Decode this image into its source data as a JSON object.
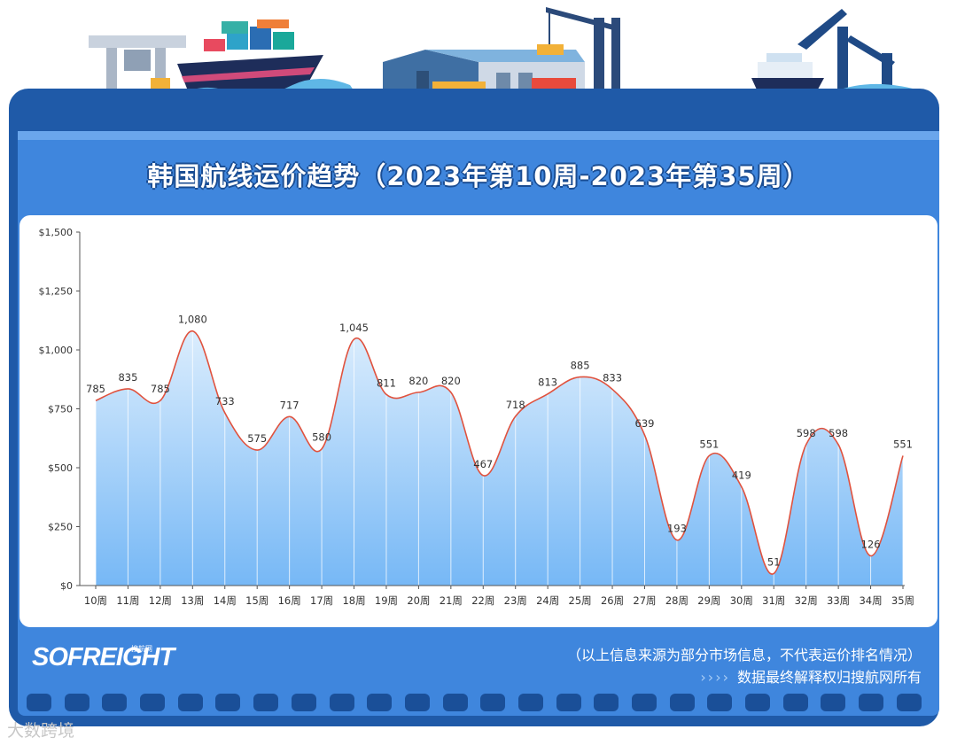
{
  "title": "韩国航线运价趋势（2023年第10周-2023年第35周）",
  "brand": {
    "name": "SOFREIGHT",
    "sub": "搜航网"
  },
  "notes": {
    "line1": "（以上信息来源为部分市场信息，不代表运价排名情况）",
    "line2_arrows": "››››",
    "line2": "数据最终解释权归搜航网所有"
  },
  "watermark": "大数跨境",
  "colors": {
    "frame": "#1f5aa8",
    "panel": "#3f86dd",
    "line": "#e0523e",
    "area_top": "#d9ecfd",
    "area_bottom": "#6fb4f5"
  },
  "chart_data": {
    "type": "area",
    "categories": [
      "10周",
      "11周",
      "12周",
      "13周",
      "14周",
      "15周",
      "16周",
      "17周",
      "18周",
      "19周",
      "20周",
      "21周",
      "22周",
      "23周",
      "24周",
      "25周",
      "26周",
      "27周",
      "28周",
      "29周",
      "30周",
      "31周",
      "32周",
      "33周",
      "34周",
      "35周"
    ],
    "values": [
      785,
      835,
      785,
      1080,
      733,
      575,
      717,
      580,
      1045,
      811,
      820,
      820,
      467,
      718,
      813,
      885,
      833,
      639,
      193,
      551,
      419,
      51,
      598,
      598,
      126,
      551
    ],
    "value_labels": [
      "785",
      "835",
      "785",
      "1,080",
      "733",
      "575",
      "717",
      "580",
      "1,045",
      "811",
      "820",
      "820",
      "467",
      "718",
      "813",
      "885",
      "833",
      "639",
      "193",
      "551",
      "419",
      "51",
      "598",
      "598",
      "126",
      "551"
    ],
    "ylim": [
      0,
      1500
    ],
    "yticks": [
      0,
      250,
      500,
      750,
      1000,
      1250,
      1500
    ],
    "ytick_labels": [
      "$0",
      "$250",
      "$500",
      "$750",
      "$1,000",
      "$1,250",
      "$1,500"
    ],
    "smooth": true,
    "grid": "vertical"
  }
}
